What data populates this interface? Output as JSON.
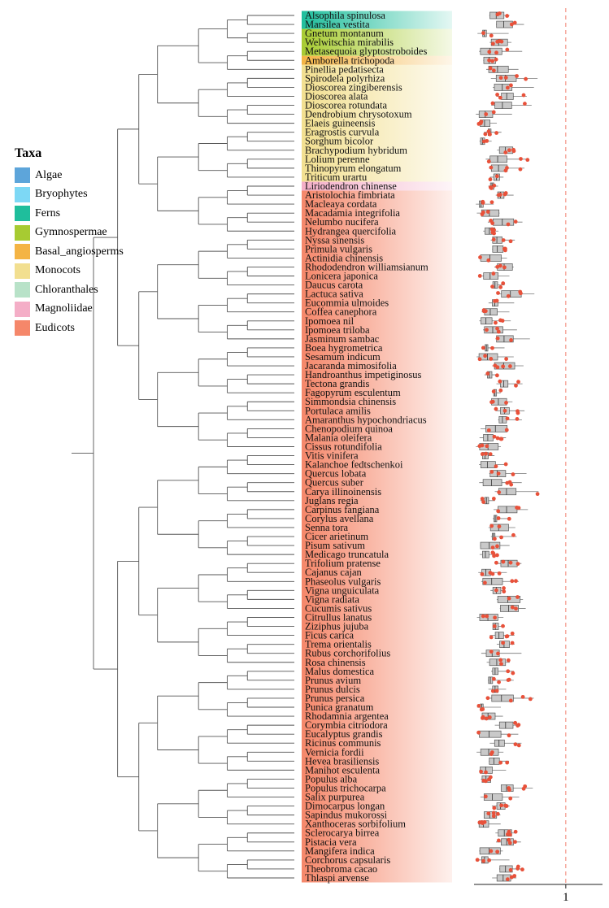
{
  "legend": {
    "title": "Taxa",
    "items": [
      {
        "label": "Algae",
        "color": "#5DA5DA"
      },
      {
        "label": "Bryophytes",
        "color": "#7DD8F5"
      },
      {
        "label": "Ferns",
        "color": "#1FBE9C"
      },
      {
        "label": "Gymnospermae",
        "color": "#A7CB32"
      },
      {
        "label": "Basal_angiosperms",
        "color": "#F4B444"
      },
      {
        "label": "Monocots",
        "color": "#F2DF90"
      },
      {
        "label": "Chloranthales",
        "color": "#B8E2C8"
      },
      {
        "label": "Magnoliidae",
        "color": "#F4AEC7"
      },
      {
        "label": "Eudicots",
        "color": "#F5876A"
      }
    ]
  },
  "axis": {
    "tick_label": "1",
    "tick_value": 1,
    "xlim": [
      0,
      1.4
    ]
  },
  "taxa": [
    {
      "name": "Alsophila spinulosa",
      "group": "Ferns"
    },
    {
      "name": "Marsilea vestita",
      "group": "Ferns"
    },
    {
      "name": "Gnetum montanum",
      "group": "Gymnospermae"
    },
    {
      "name": "Welwitschia mirabilis",
      "group": "Gymnospermae"
    },
    {
      "name": "Metasequoia glyptostroboides",
      "group": "Gymnospermae"
    },
    {
      "name": "Amborella trichopoda",
      "group": "Basal_angiosperms"
    },
    {
      "name": "Pinellia pedatisecta",
      "group": "Monocots"
    },
    {
      "name": "Spirodela polyrhiza",
      "group": "Monocots"
    },
    {
      "name": "Dioscorea zingiberensis",
      "group": "Monocots"
    },
    {
      "name": "Dioscorea alata",
      "group": "Monocots"
    },
    {
      "name": "Dioscorea rotundata",
      "group": "Monocots"
    },
    {
      "name": "Dendrobium chrysotoxum",
      "group": "Monocots"
    },
    {
      "name": "Elaeis guineensis",
      "group": "Monocots"
    },
    {
      "name": "Eragrostis curvula",
      "group": "Monocots"
    },
    {
      "name": "Sorghum bicolor",
      "group": "Monocots"
    },
    {
      "name": "Brachypodium hybridum",
      "group": "Monocots"
    },
    {
      "name": "Lolium perenne",
      "group": "Monocots"
    },
    {
      "name": "Thinopyrum elongatum",
      "group": "Monocots"
    },
    {
      "name": "Triticum urartu",
      "group": "Monocots"
    },
    {
      "name": "Liriodendron chinense",
      "group": "Magnoliidae"
    },
    {
      "name": "Aristolochia fimbriata",
      "group": "Eudicots"
    },
    {
      "name": "Macleaya cordata",
      "group": "Eudicots"
    },
    {
      "name": "Macadamia integrifolia",
      "group": "Eudicots"
    },
    {
      "name": "Nelumbo nucifera",
      "group": "Eudicots"
    },
    {
      "name": "Hydrangea quercifolia",
      "group": "Eudicots"
    },
    {
      "name": "Nyssa sinensis",
      "group": "Eudicots"
    },
    {
      "name": "Primula vulgaris",
      "group": "Eudicots"
    },
    {
      "name": "Actinidia chinensis",
      "group": "Eudicots"
    },
    {
      "name": "Rhododendron williamsianum",
      "group": "Eudicots"
    },
    {
      "name": "Lonicera japonica",
      "group": "Eudicots"
    },
    {
      "name": "Daucus carota",
      "group": "Eudicots"
    },
    {
      "name": "Lactuca sativa",
      "group": "Eudicots"
    },
    {
      "name": "Eucommia ulmoides",
      "group": "Eudicots"
    },
    {
      "name": "Coffea canephora",
      "group": "Eudicots"
    },
    {
      "name": "Ipomoea nil",
      "group": "Eudicots"
    },
    {
      "name": "Ipomoea triloba",
      "group": "Eudicots"
    },
    {
      "name": "Jasminum sambac",
      "group": "Eudicots"
    },
    {
      "name": "Boea hygrometrica",
      "group": "Eudicots"
    },
    {
      "name": "Sesamum indicum",
      "group": "Eudicots"
    },
    {
      "name": "Jacaranda mimosifolia",
      "group": "Eudicots"
    },
    {
      "name": "Handroanthus impetiginosus",
      "group": "Eudicots"
    },
    {
      "name": "Tectona grandis",
      "group": "Eudicots"
    },
    {
      "name": "Fagopyrum esculentum",
      "group": "Eudicots"
    },
    {
      "name": "Simmondsia chinensis",
      "group": "Eudicots"
    },
    {
      "name": "Portulaca amilis",
      "group": "Eudicots"
    },
    {
      "name": "Amaranthus hypochondriacus",
      "group": "Eudicots"
    },
    {
      "name": "Chenopodium quinoa",
      "group": "Eudicots"
    },
    {
      "name": "Malania oleifera",
      "group": "Eudicots"
    },
    {
      "name": "Cissus rotundifolia",
      "group": "Eudicots"
    },
    {
      "name": "Vitis vinifera",
      "group": "Eudicots"
    },
    {
      "name": "Kalanchoe fedtschenkoi",
      "group": "Eudicots"
    },
    {
      "name": "Quercus lobata",
      "group": "Eudicots"
    },
    {
      "name": "Quercus suber",
      "group": "Eudicots"
    },
    {
      "name": "Carya illinoinensis",
      "group": "Eudicots"
    },
    {
      "name": "Juglans regia",
      "group": "Eudicots"
    },
    {
      "name": "Carpinus fangiana",
      "group": "Eudicots"
    },
    {
      "name": "Corylus avellana",
      "group": "Eudicots"
    },
    {
      "name": "Senna tora",
      "group": "Eudicots"
    },
    {
      "name": "Cicer arietinum",
      "group": "Eudicots"
    },
    {
      "name": "Pisum sativum",
      "group": "Eudicots"
    },
    {
      "name": "Medicago truncatula",
      "group": "Eudicots"
    },
    {
      "name": "Trifolium pratense",
      "group": "Eudicots"
    },
    {
      "name": "Cajanus cajan",
      "group": "Eudicots"
    },
    {
      "name": "Phaseolus vulgaris",
      "group": "Eudicots"
    },
    {
      "name": "Vigna unguiculata",
      "group": "Eudicots"
    },
    {
      "name": "Vigna radiata",
      "group": "Eudicots"
    },
    {
      "name": "Cucumis sativus",
      "group": "Eudicots"
    },
    {
      "name": "Citrullus lanatus",
      "group": "Eudicots"
    },
    {
      "name": "Ziziphus jujuba",
      "group": "Eudicots"
    },
    {
      "name": "Ficus carica",
      "group": "Eudicots"
    },
    {
      "name": "Trema orientalis",
      "group": "Eudicots"
    },
    {
      "name": "Rubus corchorifolius",
      "group": "Eudicots"
    },
    {
      "name": "Rosa chinensis",
      "group": "Eudicots"
    },
    {
      "name": "Malus domestica",
      "group": "Eudicots"
    },
    {
      "name": "Prunus avium",
      "group": "Eudicots"
    },
    {
      "name": "Prunus dulcis",
      "group": "Eudicots"
    },
    {
      "name": "Prunus persica",
      "group": "Eudicots"
    },
    {
      "name": "Punica granatum",
      "group": "Eudicots"
    },
    {
      "name": "Rhodamnia argentea",
      "group": "Eudicots"
    },
    {
      "name": "Corymbia citriodora",
      "group": "Eudicots"
    },
    {
      "name": "Eucalyptus grandis",
      "group": "Eudicots"
    },
    {
      "name": "Ricinus communis",
      "group": "Eudicots"
    },
    {
      "name": "Vernicia fordii",
      "group": "Eudicots"
    },
    {
      "name": "Hevea brasiliensis",
      "group": "Eudicots"
    },
    {
      "name": "Manihot esculenta",
      "group": "Eudicots"
    },
    {
      "name": "Populus alba",
      "group": "Eudicots"
    },
    {
      "name": "Populus trichocarpa",
      "group": "Eudicots"
    },
    {
      "name": "Salix purpurea",
      "group": "Eudicots"
    },
    {
      "name": "Dimocarpus longan",
      "group": "Eudicots"
    },
    {
      "name": "Sapindus mukorossi",
      "group": "Eudicots"
    },
    {
      "name": "Xanthoceras sorbifolium",
      "group": "Eudicots"
    },
    {
      "name": "Sclerocarya birrea",
      "group": "Eudicots"
    },
    {
      "name": "Pistacia vera",
      "group": "Eudicots"
    },
    {
      "name": "Mangifera indica",
      "group": "Eudicots"
    },
    {
      "name": "Corchorus capsularis",
      "group": "Eudicots"
    },
    {
      "name": "Theobroma cacao",
      "group": "Eudicots"
    },
    {
      "name": "Thlaspi arvense",
      "group": "Eudicots"
    }
  ]
}
